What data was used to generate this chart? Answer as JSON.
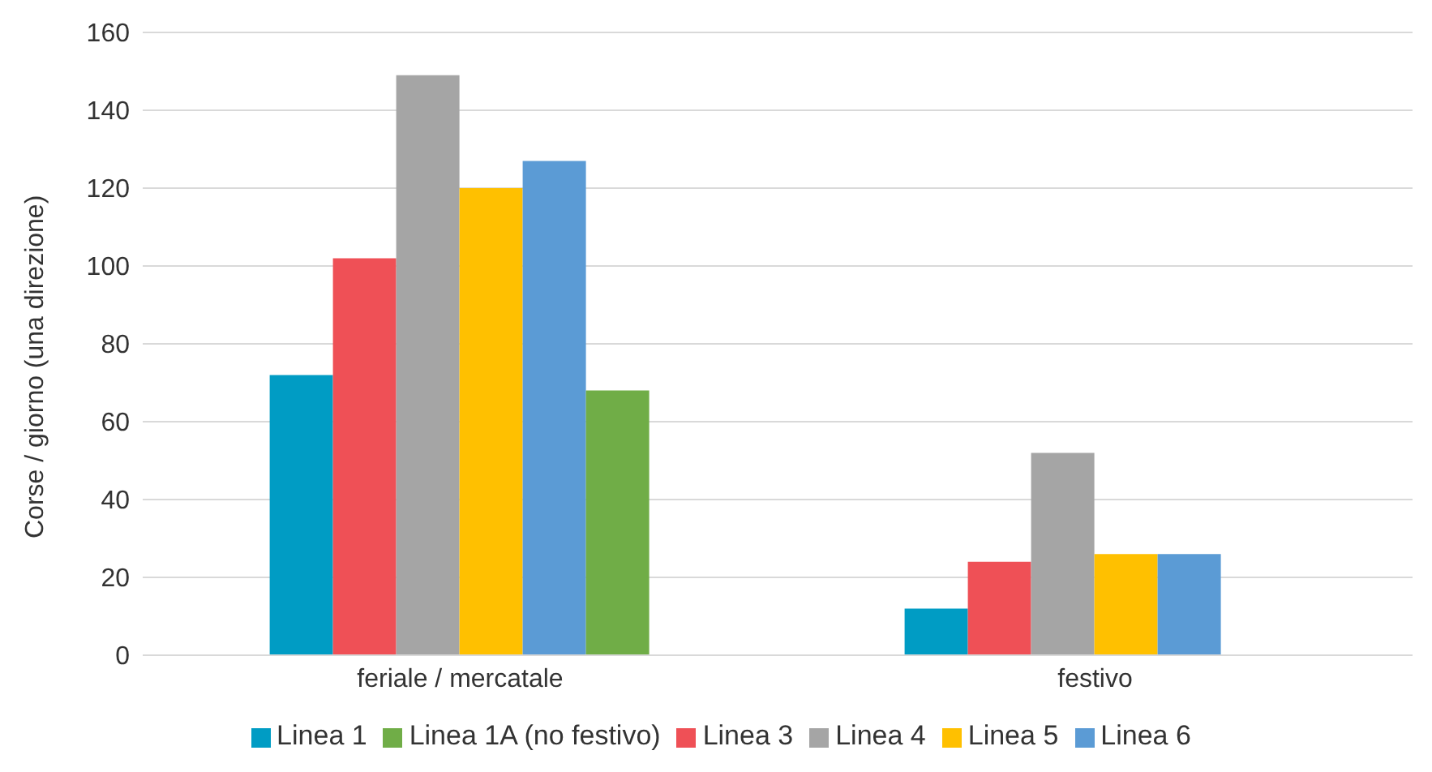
{
  "chart_data": {
    "type": "bar",
    "ylabel": "Corse / giorno (una direzione)",
    "categories": [
      "feriale / mercatale",
      "festivo"
    ],
    "series": [
      {
        "name": "Linea 1",
        "color": "#009cc4",
        "values": [
          72,
          12
        ]
      },
      {
        "name": "Linea 3",
        "color": "#ef5056",
        "values": [
          102,
          24
        ]
      },
      {
        "name": "Linea 4",
        "color": "#a5a5a5",
        "values": [
          149,
          52
        ]
      },
      {
        "name": "Linea 5",
        "color": "#ffc000",
        "values": [
          120,
          26
        ]
      },
      {
        "name": "Linea 6",
        "color": "#5b9bd5",
        "values": [
          127,
          26
        ]
      },
      {
        "name": "Linea 1A (no festivo)",
        "color": "#70ad47",
        "values": [
          68,
          null
        ]
      }
    ],
    "ylim": [
      0,
      160
    ],
    "yticks": [
      0,
      20,
      40,
      60,
      80,
      100,
      120,
      140,
      160
    ],
    "grid": "y",
    "legend": "bottom"
  }
}
